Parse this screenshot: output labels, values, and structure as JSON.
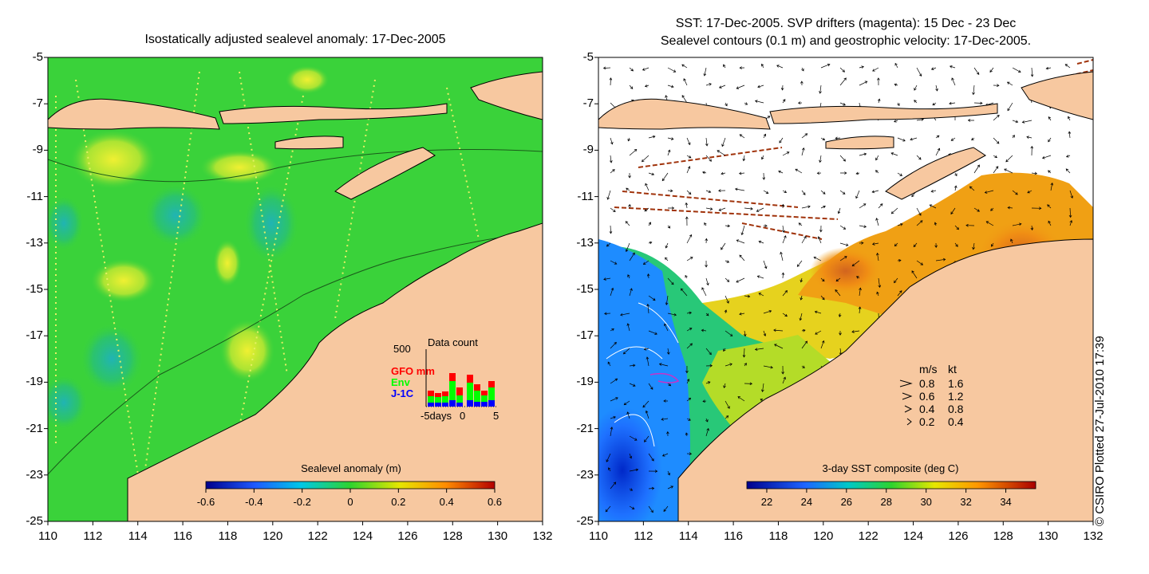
{
  "left_panel": {
    "title": "Isostatically adjusted sealevel anomaly: 17-Dec-2005",
    "colorbar": {
      "label": "Sealevel anomaly (m)",
      "ticks": [
        "-0.6",
        "-0.4",
        "-0.2",
        "0",
        "0.2",
        "0.4",
        "0.6"
      ],
      "range": [
        -0.6,
        0.6
      ]
    },
    "data_count": {
      "title": "Data count",
      "ymax_label": "500",
      "series": [
        {
          "name": "GFO mm",
          "color": "#ff0000"
        },
        {
          "name": "Env",
          "color": "#00ff00"
        },
        {
          "name": "J-1C",
          "color": "#0000ff"
        }
      ],
      "x_labels": [
        "-5days",
        "0",
        "5"
      ]
    }
  },
  "right_panel": {
    "title_line1": "SST: 17-Dec-2005. SVP drifters (magenta): 15 Dec - 23 Dec",
    "title_line2": "Sealevel contours (0.1 m) and geostrophic velocity: 17-Dec-2005.",
    "colorbar": {
      "label": "3-day SST composite (deg C)",
      "ticks": [
        "22",
        "24",
        "26",
        "28",
        "30",
        "32",
        "34"
      ],
      "range": [
        21,
        35.5
      ]
    },
    "velocity_legend": {
      "header_ms": "m/s",
      "header_kt": "kt",
      "rows": [
        {
          "ms": "0.8",
          "kt": "1.6"
        },
        {
          "ms": "0.6",
          "kt": "1.2"
        },
        {
          "ms": "0.4",
          "kt": "0.8"
        },
        {
          "ms": "0.2",
          "kt": "0.4"
        }
      ]
    }
  },
  "axes": {
    "y_ticks": [
      "-5",
      "-7",
      "-9",
      "-11",
      "-13",
      "-15",
      "-17",
      "-19",
      "-21",
      "-23",
      "-25"
    ],
    "x_ticks": [
      "110",
      "112",
      "114",
      "116",
      "118",
      "120",
      "122",
      "124",
      "126",
      "128",
      "130",
      "132"
    ],
    "lat_range": [
      -25,
      -5
    ],
    "lon_range": [
      110,
      132
    ]
  },
  "copyright": "© CSIRO Plotted 27-Jul-2010 17:39",
  "colors": {
    "land": "#f7c8a0",
    "sea_base": "#3ad23a",
    "white_cloud": "#ffffff"
  }
}
